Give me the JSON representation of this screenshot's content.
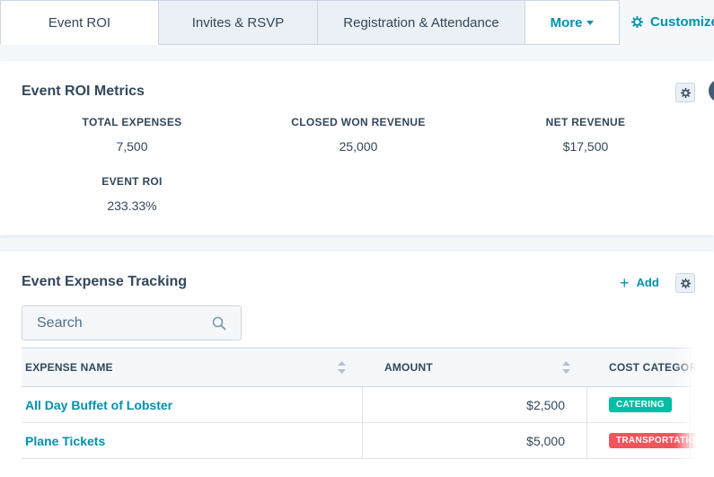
{
  "tabs": {
    "items": [
      {
        "label": "Event ROI"
      },
      {
        "label": "Invites & RSVP"
      },
      {
        "label": "Registration & Attendance"
      }
    ],
    "more_label": "More",
    "customize_label": "Customize"
  },
  "roi_card": {
    "title": "Event ROI Metrics",
    "metrics": [
      {
        "label": "TOTAL EXPENSES",
        "value": "7,500"
      },
      {
        "label": "CLOSED WON REVENUE",
        "value": "25,000"
      },
      {
        "label": "NET REVENUE",
        "value": "$17,500"
      },
      {
        "label": "EVENT ROI",
        "value": "233.33%"
      }
    ]
  },
  "expense_card": {
    "title": "Event Expense Tracking",
    "add_label": "Add",
    "search_placeholder": "Search",
    "columns": [
      "EXPENSE NAME",
      "AMOUNT",
      "COST CATEGORY"
    ],
    "rows": [
      {
        "name": "All Day Buffet of Lobster",
        "amount": "$2,500",
        "category": "CATERING",
        "category_color": "#00bda5"
      },
      {
        "name": "Plane Tickets",
        "amount": "$5,000",
        "category": "TRANSPORTATION",
        "category_color": "#f2545b"
      }
    ]
  },
  "colors": {
    "accent": "#0091ae",
    "text": "#33475b",
    "border": "#cbd6e2",
    "tab_inactive_bg": "#eaf0f6"
  }
}
